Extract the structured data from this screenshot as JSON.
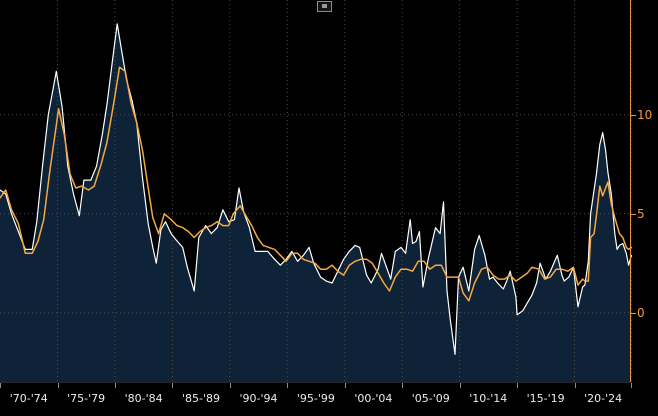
{
  "toolbar": {
    "icon": "panel-button"
  },
  "y_axis": {
    "labels": [
      "10",
      "5",
      "0"
    ],
    "values": [
      10,
      5,
      0
    ]
  },
  "x_axis": {
    "labels": [
      "'70-'74",
      "'75-'79",
      "'80-'84",
      "'85-'89",
      "'90-'94",
      "'95-'99",
      "'00-'04",
      "'05-'09",
      "'10-'14",
      "'15-'19",
      "'20-'24"
    ]
  },
  "colors": {
    "background": "#000000",
    "area_fill": "#0e2338",
    "white_line": "#ffffff",
    "orange_line": "#f5a83e",
    "grid": "#4d4d4d",
    "axis": "#e8962e",
    "x_label": "#ececec"
  },
  "chart_data": {
    "type": "line",
    "title": "",
    "xlabel": "",
    "ylabel": "",
    "xlim": [
      1970,
      2025
    ],
    "ylim": [
      -3.5,
      15.8
    ],
    "grid": {
      "h_values": [
        0,
        5,
        10
      ],
      "v_years": [
        1975,
        1980,
        1985,
        1990,
        1995,
        2000,
        2005,
        2010,
        2015,
        2020,
        2025
      ]
    },
    "legend": "none",
    "series": [
      {
        "name": "white",
        "color": "#ffffff",
        "width": 1.2,
        "fill": "#0e2338",
        "points": [
          [
            1970.0,
            6.2
          ],
          [
            1970.5,
            6.0
          ],
          [
            1971.0,
            5.0
          ],
          [
            1971.6,
            4.1
          ],
          [
            1972.2,
            3.2
          ],
          [
            1972.8,
            3.2
          ],
          [
            1973.2,
            4.6
          ],
          [
            1973.7,
            7.4
          ],
          [
            1974.2,
            10.0
          ],
          [
            1974.9,
            12.2
          ],
          [
            1975.4,
            10.4
          ],
          [
            1975.9,
            7.4
          ],
          [
            1976.4,
            6.0
          ],
          [
            1976.9,
            4.9
          ],
          [
            1977.3,
            6.7
          ],
          [
            1977.9,
            6.7
          ],
          [
            1978.4,
            7.4
          ],
          [
            1978.9,
            9.0
          ],
          [
            1979.3,
            10.5
          ],
          [
            1979.8,
            12.8
          ],
          [
            1980.2,
            14.6
          ],
          [
            1980.6,
            13.2
          ],
          [
            1981.0,
            11.8
          ],
          [
            1981.5,
            10.7
          ],
          [
            1981.9,
            9.6
          ],
          [
            1982.4,
            6.8
          ],
          [
            1982.9,
            4.5
          ],
          [
            1983.3,
            3.3
          ],
          [
            1983.6,
            2.5
          ],
          [
            1984.0,
            4.2
          ],
          [
            1984.4,
            4.6
          ],
          [
            1984.9,
            4.0
          ],
          [
            1985.3,
            3.7
          ],
          [
            1985.9,
            3.3
          ],
          [
            1986.3,
            2.3
          ],
          [
            1986.9,
            1.1
          ],
          [
            1987.3,
            3.8
          ],
          [
            1987.9,
            4.4
          ],
          [
            1988.4,
            4.0
          ],
          [
            1988.9,
            4.3
          ],
          [
            1989.4,
            5.2
          ],
          [
            1989.9,
            4.6
          ],
          [
            1990.4,
            4.7
          ],
          [
            1990.8,
            6.3
          ],
          [
            1991.2,
            5.1
          ],
          [
            1991.7,
            4.3
          ],
          [
            1992.2,
            3.1
          ],
          [
            1992.8,
            3.1
          ],
          [
            1993.3,
            3.1
          ],
          [
            1993.9,
            2.7
          ],
          [
            1994.4,
            2.4
          ],
          [
            1994.9,
            2.7
          ],
          [
            1995.4,
            3.1
          ],
          [
            1995.9,
            2.6
          ],
          [
            1996.4,
            2.9
          ],
          [
            1996.9,
            3.3
          ],
          [
            1997.3,
            2.5
          ],
          [
            1997.9,
            1.8
          ],
          [
            1998.4,
            1.6
          ],
          [
            1998.9,
            1.5
          ],
          [
            1999.4,
            2.1
          ],
          [
            1999.9,
            2.7
          ],
          [
            2000.4,
            3.1
          ],
          [
            2000.9,
            3.4
          ],
          [
            2001.3,
            3.3
          ],
          [
            2001.9,
            1.9
          ],
          [
            2002.3,
            1.5
          ],
          [
            2002.9,
            2.2
          ],
          [
            2003.2,
            3.0
          ],
          [
            2003.7,
            2.2
          ],
          [
            2004.0,
            1.7
          ],
          [
            2004.4,
            3.1
          ],
          [
            2004.9,
            3.3
          ],
          [
            2005.3,
            3.0
          ],
          [
            2005.7,
            4.7
          ],
          [
            2005.9,
            3.5
          ],
          [
            2006.2,
            3.6
          ],
          [
            2006.5,
            4.1
          ],
          [
            2006.8,
            1.3
          ],
          [
            2007.3,
            2.8
          ],
          [
            2007.9,
            4.3
          ],
          [
            2008.3,
            4.0
          ],
          [
            2008.6,
            5.6
          ],
          [
            2008.9,
            1.1
          ],
          [
            2009.2,
            -0.4
          ],
          [
            2009.6,
            -2.1
          ],
          [
            2009.9,
            1.8
          ],
          [
            2010.3,
            2.3
          ],
          [
            2010.8,
            1.1
          ],
          [
            2011.3,
            3.2
          ],
          [
            2011.7,
            3.9
          ],
          [
            2012.2,
            2.9
          ],
          [
            2012.6,
            1.7
          ],
          [
            2012.9,
            1.8
          ],
          [
            2013.3,
            1.5
          ],
          [
            2013.8,
            1.2
          ],
          [
            2014.1,
            1.6
          ],
          [
            2014.4,
            2.1
          ],
          [
            2014.9,
            0.8
          ],
          [
            2015.0,
            -0.1
          ],
          [
            2015.5,
            0.1
          ],
          [
            2015.9,
            0.5
          ],
          [
            2016.3,
            0.9
          ],
          [
            2016.7,
            1.5
          ],
          [
            2017.0,
            2.5
          ],
          [
            2017.5,
            1.7
          ],
          [
            2017.9,
            2.1
          ],
          [
            2018.5,
            2.9
          ],
          [
            2018.9,
            1.9
          ],
          [
            2019.1,
            1.6
          ],
          [
            2019.5,
            1.8
          ],
          [
            2019.9,
            2.3
          ],
          [
            2020.3,
            0.3
          ],
          [
            2020.7,
            1.3
          ],
          [
            2020.9,
            1.4
          ],
          [
            2021.2,
            2.6
          ],
          [
            2021.4,
            5.0
          ],
          [
            2021.9,
            7.0
          ],
          [
            2022.2,
            8.5
          ],
          [
            2022.45,
            9.1
          ],
          [
            2022.7,
            8.2
          ],
          [
            2022.9,
            7.1
          ],
          [
            2023.2,
            6.0
          ],
          [
            2023.5,
            4.0
          ],
          [
            2023.7,
            3.2
          ],
          [
            2023.9,
            3.4
          ],
          [
            2024.2,
            3.5
          ],
          [
            2024.5,
            3.0
          ],
          [
            2024.7,
            2.4
          ],
          [
            2024.95,
            2.9
          ]
        ]
      },
      {
        "name": "orange",
        "color": "#f5a83e",
        "width": 1.5,
        "fill": "none",
        "points": [
          [
            1970.0,
            5.8
          ],
          [
            1970.5,
            6.2
          ],
          [
            1971.0,
            5.2
          ],
          [
            1971.6,
            4.5
          ],
          [
            1972.2,
            3.0
          ],
          [
            1972.8,
            3.0
          ],
          [
            1973.3,
            3.6
          ],
          [
            1973.8,
            4.7
          ],
          [
            1974.3,
            7.0
          ],
          [
            1975.1,
            10.3
          ],
          [
            1975.6,
            9.0
          ],
          [
            1976.1,
            7.0
          ],
          [
            1976.6,
            6.3
          ],
          [
            1977.1,
            6.4
          ],
          [
            1977.7,
            6.2
          ],
          [
            1978.2,
            6.4
          ],
          [
            1978.8,
            7.5
          ],
          [
            1979.3,
            8.6
          ],
          [
            1979.9,
            10.6
          ],
          [
            1980.4,
            12.4
          ],
          [
            1980.9,
            12.2
          ],
          [
            1981.4,
            10.6
          ],
          [
            1981.9,
            9.6
          ],
          [
            1982.4,
            8.2
          ],
          [
            1982.9,
            6.3
          ],
          [
            1983.3,
            4.8
          ],
          [
            1983.8,
            4.0
          ],
          [
            1984.3,
            5.0
          ],
          [
            1984.9,
            4.7
          ],
          [
            1985.4,
            4.4
          ],
          [
            1985.9,
            4.3
          ],
          [
            1986.4,
            4.1
          ],
          [
            1986.9,
            3.8
          ],
          [
            1987.4,
            4.1
          ],
          [
            1987.9,
            4.3
          ],
          [
            1988.4,
            4.4
          ],
          [
            1988.9,
            4.6
          ],
          [
            1989.4,
            4.4
          ],
          [
            1989.9,
            4.4
          ],
          [
            1990.3,
            5.0
          ],
          [
            1990.9,
            5.4
          ],
          [
            1991.4,
            4.9
          ],
          [
            1991.9,
            4.4
          ],
          [
            1992.4,
            3.8
          ],
          [
            1992.9,
            3.4
          ],
          [
            1993.4,
            3.3
          ],
          [
            1993.9,
            3.2
          ],
          [
            1994.4,
            2.9
          ],
          [
            1994.9,
            2.6
          ],
          [
            1995.4,
            3.0
          ],
          [
            1995.9,
            3.0
          ],
          [
            1996.4,
            2.7
          ],
          [
            1996.9,
            2.6
          ],
          [
            1997.4,
            2.5
          ],
          [
            1997.9,
            2.2
          ],
          [
            1998.4,
            2.2
          ],
          [
            1998.9,
            2.4
          ],
          [
            1999.4,
            2.1
          ],
          [
            1999.9,
            1.9
          ],
          [
            2000.4,
            2.4
          ],
          [
            2000.9,
            2.6
          ],
          [
            2001.4,
            2.7
          ],
          [
            2001.9,
            2.7
          ],
          [
            2002.4,
            2.5
          ],
          [
            2002.9,
            2.0
          ],
          [
            2003.4,
            1.5
          ],
          [
            2003.9,
            1.1
          ],
          [
            2004.4,
            1.8
          ],
          [
            2004.9,
            2.2
          ],
          [
            2005.4,
            2.2
          ],
          [
            2005.9,
            2.1
          ],
          [
            2006.4,
            2.6
          ],
          [
            2006.9,
            2.6
          ],
          [
            2007.4,
            2.2
          ],
          [
            2007.9,
            2.4
          ],
          [
            2008.4,
            2.4
          ],
          [
            2008.9,
            1.8
          ],
          [
            2009.4,
            1.8
          ],
          [
            2009.9,
            1.8
          ],
          [
            2010.3,
            1.0
          ],
          [
            2010.8,
            0.6
          ],
          [
            2011.3,
            1.5
          ],
          [
            2011.9,
            2.2
          ],
          [
            2012.4,
            2.3
          ],
          [
            2012.9,
            1.9
          ],
          [
            2013.4,
            1.7
          ],
          [
            2013.9,
            1.7
          ],
          [
            2014.4,
            1.9
          ],
          [
            2014.9,
            1.6
          ],
          [
            2015.4,
            1.8
          ],
          [
            2015.9,
            2.0
          ],
          [
            2016.3,
            2.3
          ],
          [
            2016.9,
            2.2
          ],
          [
            2017.4,
            1.7
          ],
          [
            2017.9,
            1.8
          ],
          [
            2018.4,
            2.2
          ],
          [
            2018.9,
            2.2
          ],
          [
            2019.4,
            2.1
          ],
          [
            2019.9,
            2.3
          ],
          [
            2020.3,
            1.4
          ],
          [
            2020.7,
            1.7
          ],
          [
            2020.9,
            1.6
          ],
          [
            2021.2,
            1.6
          ],
          [
            2021.4,
            3.8
          ],
          [
            2021.7,
            4.0
          ],
          [
            2021.9,
            4.9
          ],
          [
            2022.2,
            6.4
          ],
          [
            2022.45,
            5.9
          ],
          [
            2022.7,
            6.3
          ],
          [
            2022.9,
            6.6
          ],
          [
            2023.2,
            5.5
          ],
          [
            2023.5,
            4.8
          ],
          [
            2023.9,
            4.0
          ],
          [
            2024.2,
            3.8
          ],
          [
            2024.5,
            3.3
          ],
          [
            2024.7,
            3.2
          ],
          [
            2024.95,
            3.3
          ]
        ]
      }
    ]
  }
}
